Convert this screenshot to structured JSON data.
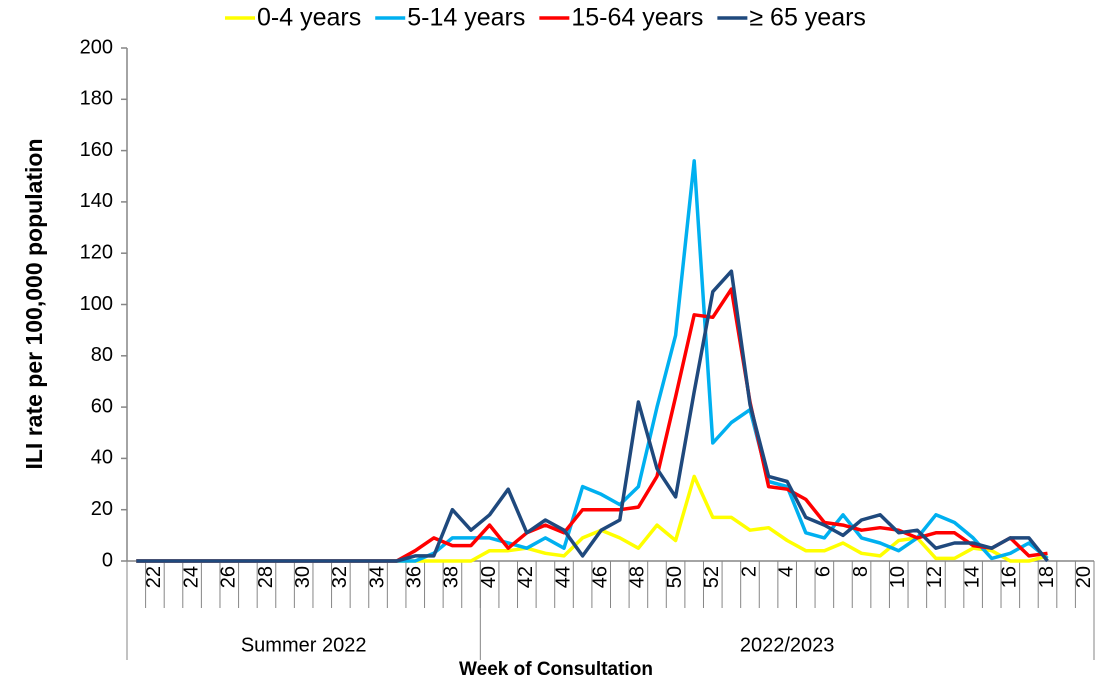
{
  "chart_data": {
    "type": "line",
    "y_label": "ILI rate per 100,000 population",
    "x_label": "Week of Consultation",
    "categories": [
      null,
      "22",
      null,
      "24",
      null,
      "26",
      null,
      "28",
      null,
      "30",
      null,
      "32",
      null,
      "34",
      null,
      "36",
      null,
      "38",
      null,
      "40",
      null,
      "42",
      null,
      "44",
      null,
      "46",
      null,
      "48",
      null,
      "50",
      null,
      "52",
      null,
      "2",
      null,
      "4",
      null,
      "6",
      null,
      "8",
      null,
      "10",
      null,
      "12",
      null,
      "14",
      null,
      "16",
      null,
      "18",
      null,
      "20"
    ],
    "x_groups": [
      {
        "label": "Summer 2022",
        "count": 19
      },
      {
        "label": "2022/2023",
        "count": 33
      }
    ],
    "series": [
      {
        "name": "0-4 years",
        "color": "#ffff00",
        "values": [
          0,
          0,
          0,
          0,
          0,
          0,
          0,
          0,
          0,
          0,
          0,
          0,
          0,
          0,
          0,
          0,
          0,
          0,
          0,
          4,
          4,
          5,
          3,
          2,
          9,
          12,
          9,
          5,
          14,
          8,
          33,
          17,
          17,
          12,
          13,
          8,
          4,
          4,
          7,
          3,
          2,
          8,
          9,
          1,
          1,
          5,
          4,
          0,
          0,
          2,
          null,
          null
        ]
      },
      {
        "name": "5-14 years",
        "color": "#00b0f0",
        "values": [
          0,
          0,
          0,
          0,
          0,
          0,
          0,
          0,
          0,
          0,
          0,
          0,
          0,
          0,
          0,
          0,
          3,
          9,
          9,
          9,
          7,
          5,
          9,
          5,
          29,
          26,
          22,
          29,
          60,
          88,
          156,
          46,
          54,
          59,
          31,
          29,
          11,
          9,
          18,
          9,
          7,
          4,
          9,
          18,
          15,
          9,
          1,
          3,
          7,
          1,
          null,
          null
        ]
      },
      {
        "name": "15-64 years",
        "color": "#ff0000",
        "values": [
          0,
          0,
          0,
          0,
          0,
          0,
          0,
          0,
          0,
          0,
          0,
          0,
          0,
          0,
          0,
          4,
          9,
          6,
          6,
          14,
          5,
          11,
          14,
          11,
          20,
          20,
          20,
          21,
          33,
          64,
          96,
          95,
          106,
          62,
          29,
          28,
          24,
          15,
          14,
          12,
          13,
          12,
          9,
          11,
          11,
          6,
          5,
          9,
          2,
          3,
          null,
          null
        ]
      },
      {
        "name": "≥ 65 years",
        "color": "#1f497d",
        "values": [
          0,
          0,
          0,
          0,
          0,
          0,
          0,
          0,
          0,
          0,
          0,
          0,
          0,
          0,
          0,
          2,
          2,
          20,
          12,
          18,
          28,
          11,
          16,
          12,
          2,
          12,
          16,
          62,
          36,
          25,
          66,
          105,
          113,
          61,
          33,
          31,
          17,
          14,
          10,
          16,
          18,
          11,
          12,
          5,
          7,
          7,
          5,
          9,
          9,
          0,
          null,
          null
        ]
      }
    ],
    "ylim": [
      0,
      200
    ],
    "yticks": [
      0,
      20,
      40,
      60,
      80,
      100,
      120,
      140,
      160,
      180,
      200
    ],
    "grid": false,
    "legend": "top"
  }
}
